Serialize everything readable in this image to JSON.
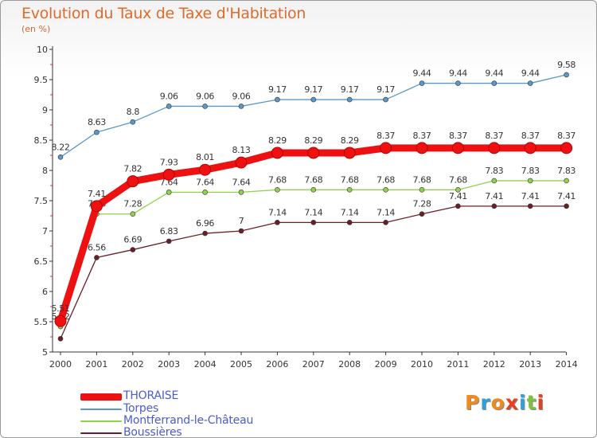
{
  "title": "Evolution du Taux de Taxe d'Habitation",
  "subtitle": "(en %)",
  "logo": {
    "letters": [
      "P",
      "r",
      "o",
      "x",
      "i",
      "t",
      "i"
    ],
    "colors": [
      "#f08a1c",
      "#2fa0d8",
      "#f08a1c",
      "#e8401c",
      "#2fa0d8",
      "#7cc242",
      "#e8401c"
    ]
  },
  "chart_data": {
    "type": "line",
    "x": [
      "2000",
      "2001",
      "2002",
      "2003",
      "2004",
      "2005",
      "2006",
      "2007",
      "2008",
      "2009",
      "2010",
      "2011",
      "2012",
      "2013",
      "2014"
    ],
    "ylim": [
      5,
      10
    ],
    "yticks": [
      "5",
      "5.5",
      "6",
      "6.5",
      "7",
      "7.5",
      "8",
      "8.5",
      "9",
      "9.5",
      "10"
    ],
    "grid": false,
    "legend_position": "bottom-left",
    "series": [
      {
        "name": "Torpes",
        "color": "#5b97c8",
        "values": [
          8.22,
          8.63,
          8.8,
          9.06,
          9.06,
          9.06,
          9.17,
          9.17,
          9.17,
          9.17,
          9.44,
          9.44,
          9.44,
          9.44,
          9.58
        ],
        "labels": [
          "8.22",
          "8.63",
          "8.8",
          "9.06",
          "9.06",
          "9.06",
          "9.17",
          "9.17",
          "9.17",
          "9.17",
          "9.44",
          "9.44",
          "9.44",
          "9.44",
          "9.58"
        ]
      },
      {
        "name": "Montferrand-le-Château",
        "color": "#92d050",
        "values": [
          5.42,
          7.28,
          7.28,
          7.64,
          7.64,
          7.64,
          7.68,
          7.68,
          7.68,
          7.68,
          7.68,
          7.68,
          7.83,
          7.83,
          7.83
        ],
        "labels": [
          "5.42",
          "7.28",
          "7.28",
          "7.64",
          "7.64",
          "7.64",
          "7.68",
          "7.68",
          "7.68",
          "7.68",
          "7.68",
          "7.68",
          "7.83",
          "7.83",
          "7.83"
        ]
      },
      {
        "name": "Boussières",
        "color": "#6b1e26",
        "values": [
          5.22,
          6.56,
          6.69,
          6.83,
          6.96,
          7,
          7.14,
          7.14,
          7.14,
          7.14,
          7.28,
          7.41,
          7.41,
          7.41,
          7.41
        ],
        "labels": [
          "",
          "6.56",
          "6.69",
          "6.83",
          "6.96",
          "7",
          "7.14",
          "7.14",
          "7.14",
          "7.14",
          "7.28",
          "7.41",
          "7.41",
          "7.41",
          "7.41"
        ]
      },
      {
        "name": "THORAISE",
        "color": "#ee1111",
        "values": [
          5.51,
          7.41,
          7.82,
          7.93,
          8.01,
          8.13,
          8.29,
          8.29,
          8.29,
          8.37,
          8.37,
          8.37,
          8.37,
          8.37,
          8.37
        ],
        "labels": [
          "5.51",
          "7.41",
          "7.82",
          "7.93",
          "8.01",
          "8.13",
          "8.29",
          "8.29",
          "8.29",
          "8.37",
          "8.37",
          "8.37",
          "8.37",
          "8.37",
          "8.37"
        ]
      }
    ],
    "legend": [
      "THORAISE",
      "Torpes",
      "Montferrand-le-Château",
      "Boussières"
    ]
  }
}
